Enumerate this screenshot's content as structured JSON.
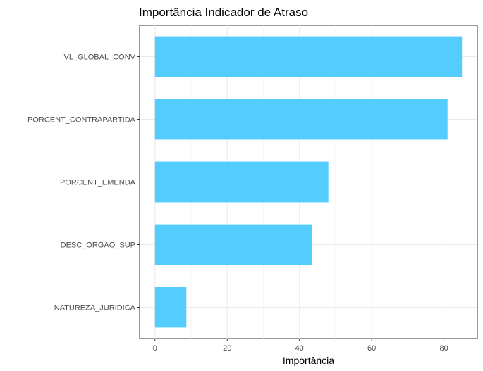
{
  "chart_data": {
    "type": "bar",
    "orientation": "horizontal",
    "title": "Importância Indicador de Atraso",
    "xlabel": "Importância",
    "ylabel": "",
    "categories": [
      "VL_GLOBAL_CONV",
      "PORCENT_CONTRAPARTIDA",
      "PORCENT_EMENDA",
      "DESC_ORGAO_SUP",
      "NATUREZA_JURIDICA"
    ],
    "values": [
      85,
      81,
      48,
      43.5,
      8.7
    ],
    "xlim": [
      -4.25,
      89.25
    ],
    "xticks": [
      0,
      20,
      40,
      60,
      80
    ],
    "xtick_labels": [
      "0",
      "20",
      "40",
      "60",
      "80"
    ],
    "grid": true,
    "legend": "none",
    "bar_color": "#54CDFE"
  }
}
